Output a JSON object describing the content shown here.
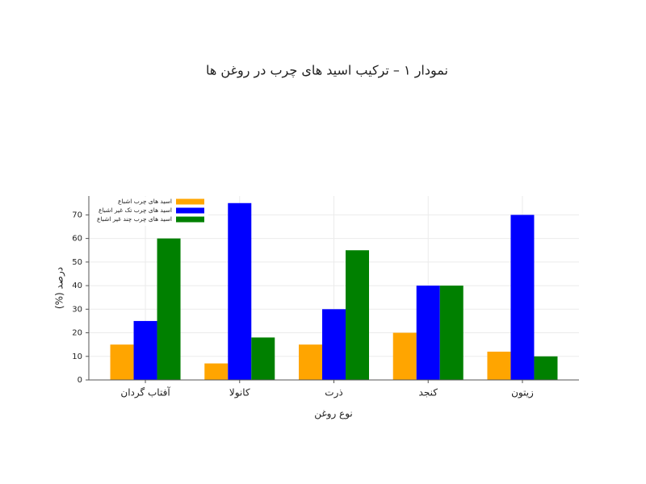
{
  "chart_data": {
    "type": "bar",
    "title": "نمودار ۱ – ترکیب اسید های چرب در روغن ها",
    "xlabel": "نوع روغن",
    "ylabel": "درصد (%)",
    "categories": [
      "آفتاب گردان",
      "کانولا",
      "ذرت",
      "کنجد",
      "زیتون"
    ],
    "series": [
      {
        "name": "اسید های چرب اشباع",
        "color": "#ffa500",
        "values": [
          15,
          7,
          15,
          20,
          12
        ]
      },
      {
        "name": "اسید های چرب تک غیر اشباع",
        "color": "#0000ff",
        "values": [
          25,
          75,
          30,
          40,
          70
        ]
      },
      {
        "name": "اسید های چرب چند غیر اشباع",
        "color": "#008000",
        "values": [
          60,
          18,
          55,
          40,
          10
        ]
      }
    ],
    "ylim": [
      0,
      78
    ],
    "yticks": [
      0,
      10,
      20,
      30,
      40,
      50,
      60,
      70
    ],
    "grid": true,
    "legend": "upper-left"
  }
}
